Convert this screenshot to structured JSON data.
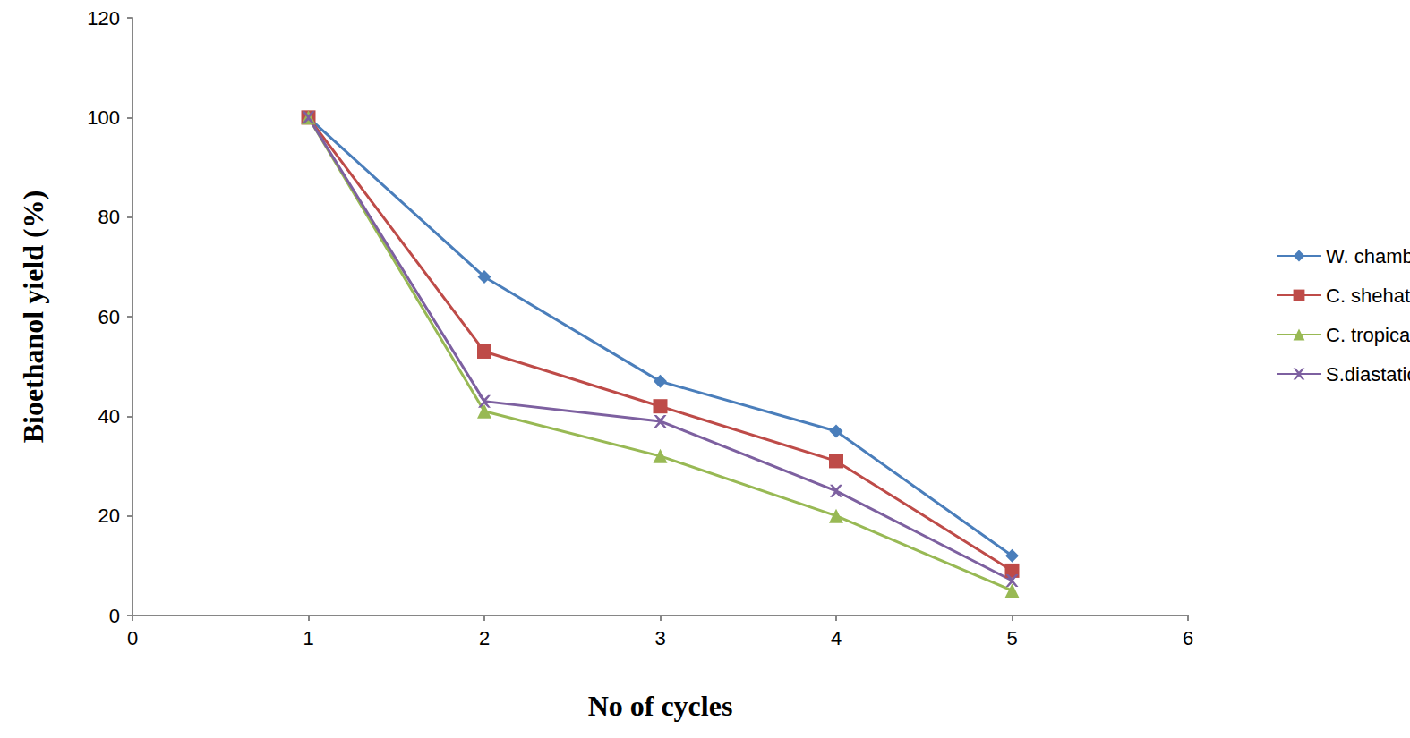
{
  "chart_data": {
    "type": "line",
    "xlabel": "No of cycles",
    "ylabel": "Bioethanol yield (%)",
    "x": [
      1,
      2,
      3,
      4,
      5
    ],
    "series": [
      {
        "name": "W. chambardii",
        "color": "#4a7ebb",
        "marker": "diamond",
        "values": [
          100,
          68,
          47,
          37,
          12
        ]
      },
      {
        "name": "C. shehatae",
        "color": "#be4b48",
        "marker": "square",
        "values": [
          100,
          53,
          42,
          31,
          9
        ]
      },
      {
        "name": "C. tropicalis",
        "color": "#98b954",
        "marker": "triangle",
        "values": [
          100,
          41,
          32,
          20,
          5
        ]
      },
      {
        "name": "S.diastaticus",
        "color": "#7d60a0",
        "marker": "x",
        "values": [
          100,
          43,
          39,
          25,
          7
        ]
      }
    ],
    "xlim": [
      0,
      6
    ],
    "xticks": [
      0,
      1,
      2,
      3,
      4,
      5,
      6
    ],
    "ylim": [
      0,
      120
    ],
    "yticks": [
      0,
      20,
      40,
      60,
      80,
      100,
      120
    ],
    "grid": false,
    "legend": "right"
  }
}
